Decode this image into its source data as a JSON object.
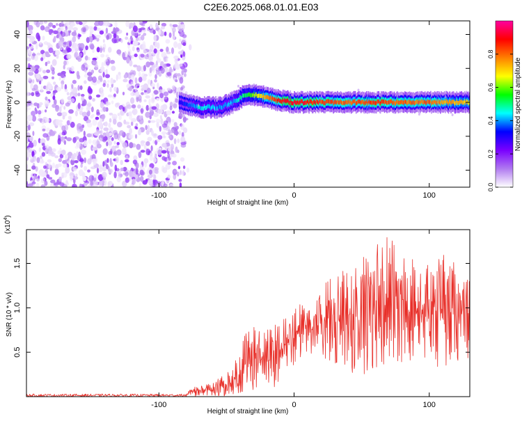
{
  "title": "C2E6.2025.068.01.01.E03",
  "chart_data": [
    {
      "type": "heatmap",
      "title": "C2E6.2025.068.01.01.E03",
      "xlabel": "Height of straight line (km)",
      "ylabel": "Frequency (Hz)",
      "xlim": [
        -198,
        130
      ],
      "ylim": [
        -50,
        48
      ],
      "x_ticks": [
        -100,
        0,
        100
      ],
      "x_tick_labels": [
        "-100",
        "0",
        "100"
      ],
      "y_ticks": [
        -40,
        -20,
        0,
        20,
        40
      ],
      "y_tick_labels": [
        "-40",
        "-20",
        "0",
        "20",
        "40"
      ],
      "grid": false,
      "colorbar": {
        "label": "Normalized spectral amplitude",
        "range": [
          0,
          1
        ],
        "ticks": [
          0.0,
          0.2,
          0.4,
          0.6,
          0.8
        ],
        "tick_labels": [
          "0.0",
          "0.2",
          "0.4",
          "0.6",
          "0.8"
        ],
        "colormap": [
          "#ffffff",
          "#b07af0",
          "#7a00ff",
          "#0000ff",
          "#00ffff",
          "#00ff00",
          "#ffff00",
          "#ff8000",
          "#ff0000",
          "#ff00a0"
        ]
      },
      "noise_region": {
        "x_range": [
          -198,
          -80
        ],
        "freq_range": [
          -50,
          48
        ],
        "amplitude_range": [
          0.02,
          0.2
        ]
      },
      "ridge": [
        {
          "x": -85,
          "freq": 0,
          "amp": 0.3
        },
        {
          "x": -70,
          "freq": -3,
          "amp": 0.45
        },
        {
          "x": -55,
          "freq": -3,
          "amp": 0.4
        },
        {
          "x": -45,
          "freq": 0,
          "amp": 0.4
        },
        {
          "x": -35,
          "freq": 5,
          "amp": 0.55
        },
        {
          "x": -20,
          "freq": 3,
          "amp": 0.75
        },
        {
          "x": -10,
          "freq": 1,
          "amp": 0.9
        },
        {
          "x": 0,
          "freq": 0,
          "amp": 0.9
        },
        {
          "x": 20,
          "freq": 0,
          "amp": 0.85
        },
        {
          "x": 40,
          "freq": 0,
          "amp": 0.8
        },
        {
          "x": 60,
          "freq": 0,
          "amp": 0.85
        },
        {
          "x": 80,
          "freq": 0,
          "amp": 0.8
        },
        {
          "x": 100,
          "freq": 0,
          "amp": 0.8
        },
        {
          "x": 130,
          "freq": 0,
          "amp": 0.7
        }
      ]
    },
    {
      "type": "line",
      "xlabel": "Height of straight line (km)",
      "ylabel": "SNR (10 * v/v)",
      "y_multiplier_label": "(x10",
      "y_multiplier_exp": "4",
      "xlim": [
        -198,
        130
      ],
      "ylim": [
        0,
        1.88
      ],
      "x_ticks": [
        -100,
        0,
        100
      ],
      "x_tick_labels": [
        "-100",
        "0",
        "100"
      ],
      "y_ticks": [
        0.5,
        1.0,
        1.5
      ],
      "y_tick_labels": [
        "0.5",
        "1.0",
        "1.5"
      ],
      "grid": false,
      "series": [
        {
          "color": "#e8302a",
          "envelope": [
            {
              "x": -198,
              "low": 0.0,
              "high": 0.03
            },
            {
              "x": -80,
              "low": 0.0,
              "high": 0.03
            },
            {
              "x": -75,
              "low": 0.0,
              "high": 0.12
            },
            {
              "x": -60,
              "low": 0.0,
              "high": 0.15
            },
            {
              "x": -45,
              "low": 0.0,
              "high": 0.35
            },
            {
              "x": -38,
              "low": 0.05,
              "high": 0.65
            },
            {
              "x": -32,
              "low": 0.05,
              "high": 0.88
            },
            {
              "x": -25,
              "low": 0.1,
              "high": 0.75
            },
            {
              "x": -15,
              "low": 0.1,
              "high": 0.8
            },
            {
              "x": -5,
              "low": 0.3,
              "high": 0.95
            },
            {
              "x": 5,
              "low": 0.4,
              "high": 1.05
            },
            {
              "x": 15,
              "low": 0.5,
              "high": 1.1
            },
            {
              "x": 25,
              "low": 0.4,
              "high": 1.35
            },
            {
              "x": 35,
              "low": 0.35,
              "high": 1.4
            },
            {
              "x": 50,
              "low": 0.2,
              "high": 1.55
            },
            {
              "x": 55,
              "low": 0.3,
              "high": 1.88
            },
            {
              "x": 70,
              "low": 0.35,
              "high": 1.85
            },
            {
              "x": 90,
              "low": 0.4,
              "high": 1.55
            },
            {
              "x": 110,
              "low": 0.3,
              "high": 1.6
            },
            {
              "x": 130,
              "low": 0.4,
              "high": 1.45
            }
          ]
        }
      ]
    }
  ]
}
